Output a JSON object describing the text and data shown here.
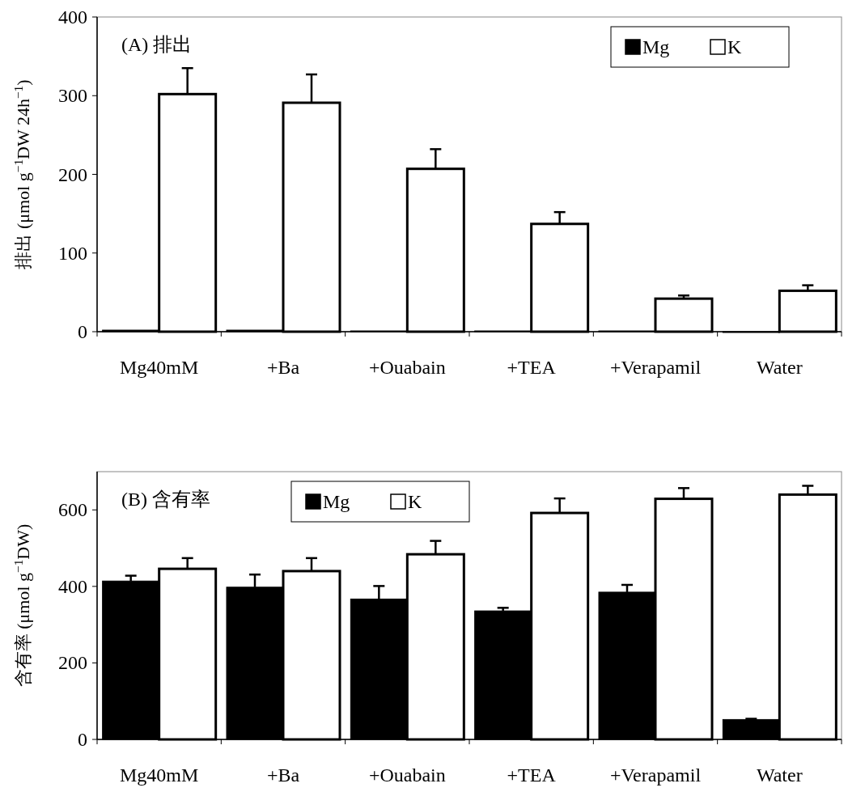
{
  "chart_data": [
    {
      "type": "bar",
      "title": "(A) 排出",
      "ylabel": "排出 (μmol g$^{−1}$DW 24h$^{−1}$)",
      "categories": [
        "Mg40mM",
        "+Ba",
        "+Ouabain",
        "+TEA",
        "+Verapamil",
        "Water"
      ],
      "series": [
        {
          "name": "Mg",
          "color": "#000000",
          "values": [
            2,
            2,
            1,
            1,
            1,
            0
          ]
        },
        {
          "name": "K",
          "color": "#ffffff",
          "values": [
            302,
            291,
            207,
            137,
            42,
            52
          ],
          "errors": [
            [
              302,
              335
            ],
            [
              291,
              327
            ],
            [
              207,
              232
            ],
            [
              137,
              152
            ],
            [
              42,
              46
            ],
            [
              52,
              59
            ]
          ]
        }
      ],
      "ylim": [
        0,
        400
      ],
      "yticks": [
        0,
        100,
        200,
        300,
        400
      ],
      "grid": false,
      "legend": "top right"
    },
    {
      "type": "bar",
      "title": "(B) 含有率",
      "ylabel": "含有率 (μmol g$^{−1}$DW)",
      "categories": [
        "Mg40mM",
        "+Ba",
        "+Ouabain",
        "+TEA",
        "+Verapamil",
        "Water"
      ],
      "series": [
        {
          "name": "Mg",
          "color": "#000000",
          "values": [
            414,
            398,
            367,
            336,
            385,
            52
          ],
          "errors": [
            [
              414,
              428
            ],
            [
              398,
              431
            ],
            [
              367,
              401
            ],
            [
              336,
              344
            ],
            [
              385,
              404
            ],
            [
              52,
              54
            ]
          ]
        },
        {
          "name": "K",
          "color": "#ffffff",
          "values": [
            446,
            440,
            484,
            592,
            629,
            640
          ],
          "errors": [
            [
              446,
              474
            ],
            [
              440,
              474
            ],
            [
              484,
              519
            ],
            [
              592,
              630
            ],
            [
              629,
              657
            ],
            [
              640,
              663
            ]
          ]
        }
      ],
      "ylim": [
        0,
        700
      ],
      "yticks": [
        0,
        200,
        400,
        600
      ],
      "grid": false,
      "legend": "top"
    }
  ]
}
